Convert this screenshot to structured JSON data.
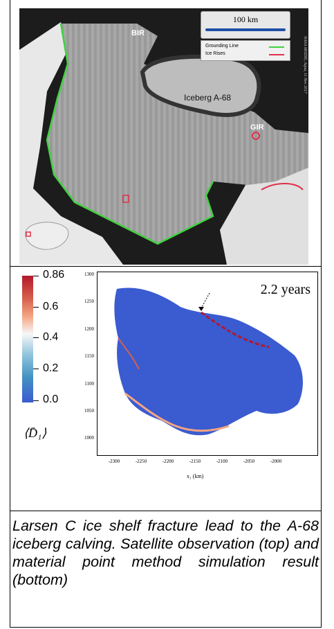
{
  "satellite": {
    "scale_label": "100 km",
    "legend_grounding": "Grounding Line",
    "legend_ice_rises": "Ice Rises",
    "label_bir": "BIR",
    "label_iceberg": "Iceberg A-68",
    "label_gir": "GIR",
    "credit": "NASA MODIS, Aqua, 11 Nov 2017",
    "colors": {
      "grounding": "#3fd23f",
      "ice_rise": "#e0304a",
      "scale_bar": "#1f4fa8"
    }
  },
  "simulation": {
    "time_label": "2.2 years",
    "colorbar_labels": [
      "0.86",
      "0.6",
      "0.4",
      "0.2",
      "0.0"
    ],
    "colorbar_symbol": "⟨D̄₁⟩",
    "y_ticks": [
      "1300",
      "1250",
      "1200",
      "1150",
      "1100",
      "1050",
      "1000"
    ],
    "x_ticks": [
      "-2300",
      "-2250",
      "-2200",
      "-2150",
      "-2100",
      "-2050",
      "-2000"
    ],
    "x_axis_label": "x₁ (km)"
  },
  "caption": "Larsen C ice shelf fracture lead to the A-68 iceberg calving. Satellite observation (top) and material point method simulation result (bottom)"
}
